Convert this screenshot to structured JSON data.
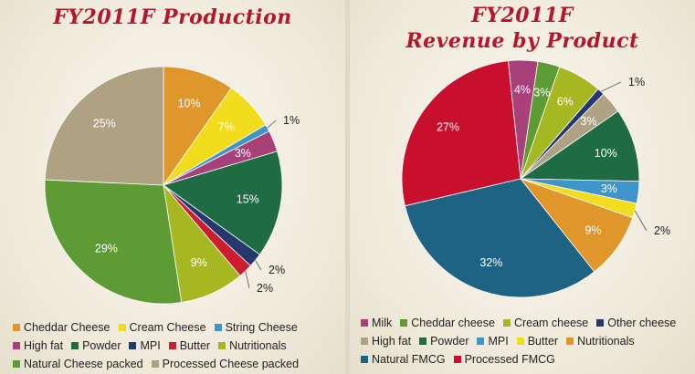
{
  "chart_data": [
    {
      "type": "pie",
      "title": "FY2011F Production",
      "slices": [
        {
          "label": "Cheddar Cheese",
          "value": 10,
          "display": "10%",
          "color": "#df962b"
        },
        {
          "label": "Cream Cheese",
          "value": 7,
          "display": "7%",
          "color": "#f2dc1e"
        },
        {
          "label": "String Cheese",
          "value": 1,
          "display": "1%",
          "color": "#3f94c9"
        },
        {
          "label": "High fat",
          "value": 3,
          "display": "3%",
          "color": "#a84179"
        },
        {
          "label": "Powder",
          "value": 15,
          "display": "15%",
          "color": "#1f6b43"
        },
        {
          "label": "MPI",
          "value": 2,
          "display": "2%",
          "color": "#24386f"
        },
        {
          "label": "Butter",
          "value": 2,
          "display": "2%",
          "color": "#cc1e2e"
        },
        {
          "label": "Nutritionals",
          "value": 9,
          "display": "9%",
          "color": "#a5b822"
        },
        {
          "label": "Natural Cheese packed",
          "value": 29,
          "display": "29%",
          "color": "#5f9b35"
        },
        {
          "label": "Processed Cheese packed",
          "value": 25,
          "display": "25%",
          "color": "#afa283"
        }
      ],
      "legend_rows": [
        [
          "Cheddar Cheese",
          "Cream Cheese",
          "String Cheese"
        ],
        [
          "High fat",
          "Powder",
          "MPI",
          "Butter",
          "Nutritionals"
        ],
        [
          "Natural Cheese packed",
          "Processed Cheese packed"
        ]
      ]
    },
    {
      "type": "pie",
      "title": "FY2011F",
      "subtitle": "Revenue by Product",
      "slices": [
        {
          "label": "Milk",
          "value": 4,
          "display": "4%",
          "color": "#a84179"
        },
        {
          "label": "Cheddar cheese",
          "value": 3,
          "display": "3%",
          "color": "#5f9b35"
        },
        {
          "label": "Cream cheese",
          "value": 6,
          "display": "6%",
          "color": "#a5b822"
        },
        {
          "label": "Other cheese",
          "value": 1,
          "display": "1%",
          "color": "#24386f"
        },
        {
          "label": "High fat",
          "value": 3,
          "display": "3%",
          "color": "#afa283"
        },
        {
          "label": "Powder",
          "value": 10,
          "display": "10%",
          "color": "#1f6b43"
        },
        {
          "label": "MPI",
          "value": 3,
          "display": "3%",
          "color": "#3f94c9"
        },
        {
          "label": "Butter",
          "value": 2,
          "display": "2%",
          "color": "#f2dc1e"
        },
        {
          "label": "Nutritionals",
          "value": 9,
          "display": "9%",
          "color": "#df962b"
        },
        {
          "label": "Natural FMCG",
          "value": 32,
          "display": "32%",
          "color": "#1f6384"
        },
        {
          "label": "Processed FMCG",
          "value": 27,
          "display": "27%",
          "color": "#c8102e"
        }
      ],
      "legend_rows": [
        [
          "Milk",
          "Cheddar cheese",
          "Cream cheese",
          "Other cheese"
        ],
        [
          "High fat",
          "Powder",
          "MPI",
          "Butter",
          "Nutritionals"
        ],
        [
          "Natural FMCG",
          "Processed FMCG"
        ]
      ]
    }
  ]
}
